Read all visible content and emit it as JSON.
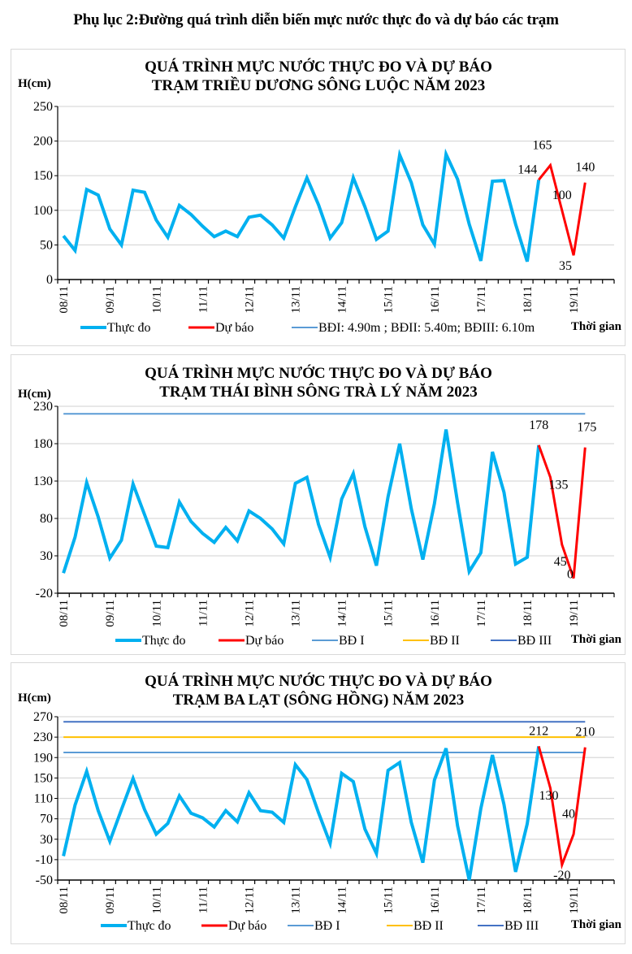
{
  "page": {
    "title": "Phụ lục 2:Đường quá trình diễn biến mực nước thực đo và dự báo các trạm"
  },
  "colors": {
    "observed": "#00b0f0",
    "forecast": "#ff0000",
    "bd1": "#5b9bd5",
    "bd2": "#ffc000",
    "bd3": "#4472c4",
    "grid": "#d9d9d9",
    "axis": "#000000"
  },
  "chart_data": [
    {
      "type": "line",
      "title": [
        "QUÁ TRÌNH MỰC NƯỚC THỰC ĐO VÀ DỰ BÁO",
        "TRẠM TRIỀU DƯƠNG SÔNG LUỘC NĂM 2023"
      ],
      "ylabel": "H(cm)",
      "xlabel": "Thời gian",
      "ylim": [
        0,
        250
      ],
      "yticks": [
        0,
        50,
        100,
        150,
        200,
        250
      ],
      "grid": true,
      "x_tick_labels": [
        "08/11",
        "09/11",
        "10/11",
        "11/11",
        "12/11",
        "13/11",
        "14/11",
        "15/11",
        "16/11",
        "17/11",
        "18/11",
        "19/11"
      ],
      "points_per_day": 4,
      "total_ticks": 48,
      "legend": [
        {
          "label": "Thực đo",
          "series": "observed"
        },
        {
          "label": "Dự báo",
          "series": "forecast"
        },
        {
          "label": "BĐI: 4.90m ; BĐII: 5.40m; BĐIII: 6.10m",
          "series": "bd1"
        }
      ],
      "legend_position": "bottom",
      "series": [
        {
          "name": "Thực đo",
          "key": "observed",
          "start_index": 0,
          "values": [
            63,
            42,
            130,
            122,
            73,
            50,
            129,
            126,
            86,
            61,
            107,
            94,
            77,
            62,
            70,
            62,
            90,
            93,
            79,
            60,
            105,
            147,
            108,
            60,
            82,
            147,
            105,
            58,
            70,
            180,
            140,
            79,
            51,
            181,
            145,
            80,
            27,
            142,
            143,
            80,
            26,
            144
          ]
        },
        {
          "name": "Dự báo",
          "key": "forecast",
          "start_index": 41,
          "values": [
            144,
            165,
            100,
            35,
            140
          ]
        }
      ],
      "alert_levels": [],
      "data_labels": [
        {
          "index": 41,
          "text": "144"
        },
        {
          "index": 42,
          "text": "165"
        },
        {
          "index": 43,
          "text": "100"
        },
        {
          "index": 44,
          "text": "35"
        },
        {
          "index": 45,
          "text": "140"
        }
      ]
    },
    {
      "type": "line",
      "title": [
        "QUÁ TRÌNH MỰC NƯỚC THỰC ĐO VÀ DỰ BÁO",
        "TRẠM THÁI BÌNH SÔNG TRÀ LÝ NĂM 2023"
      ],
      "ylabel": "H(cm)",
      "xlabel": "Thời gian",
      "ylim": [
        -20,
        230
      ],
      "yticks": [
        -20,
        30,
        80,
        130,
        180,
        230
      ],
      "grid": true,
      "x_tick_labels": [
        "08/11",
        "09/11",
        "10/11",
        "11/11",
        "12/11",
        "13/11",
        "14/11",
        "15/11",
        "16/11",
        "17/11",
        "18/11",
        "19/11"
      ],
      "points_per_day": 4,
      "total_ticks": 48,
      "legend": [
        {
          "label": "Thực đo",
          "series": "observed"
        },
        {
          "label": "Dự báo",
          "series": "forecast"
        },
        {
          "label": "BĐ I",
          "series": "bd1"
        },
        {
          "label": "BĐ II",
          "series": "bd2"
        },
        {
          "label": "BĐ III",
          "series": "bd3"
        }
      ],
      "legend_position": "bottom",
      "series": [
        {
          "name": "Thực đo",
          "key": "observed",
          "start_index": 0,
          "values": [
            7,
            55,
            128,
            82,
            27,
            51,
            126,
            85,
            43,
            41,
            102,
            76,
            60,
            48,
            68,
            50,
            90,
            80,
            66,
            46,
            127,
            135,
            72,
            28,
            106,
            140,
            69,
            17,
            109,
            180,
            93,
            25,
            100,
            199,
            101,
            9,
            34,
            169,
            115,
            19,
            28,
            178
          ]
        },
        {
          "name": "Dự báo",
          "key": "forecast",
          "start_index": 41,
          "values": [
            178,
            135,
            45,
            0,
            175
          ]
        }
      ],
      "alert_levels": [
        {
          "name": "BĐ I",
          "key": "bd1",
          "value": 220
        }
      ],
      "data_labels": [
        {
          "index": 41,
          "text": "178"
        },
        {
          "index": 42,
          "text": "135"
        },
        {
          "index": 43,
          "text": "45"
        },
        {
          "index": 44,
          "text": "0"
        },
        {
          "index": 45,
          "text": "175"
        }
      ]
    },
    {
      "type": "line",
      "title": [
        "QUÁ TRÌNH MỰC NƯỚC THỰC ĐO VÀ DỰ BÁO",
        "TRẠM BA LẠT (SÔNG HỒNG) NĂM 2023"
      ],
      "ylabel": "H(cm)",
      "xlabel": "Thời gian",
      "ylim": [
        -50,
        270
      ],
      "yticks": [
        -50,
        -10,
        30,
        70,
        110,
        150,
        190,
        230,
        270
      ],
      "grid": true,
      "x_tick_labels": [
        "08/11",
        "09/11",
        "10/11",
        "11/11",
        "12/11",
        "13/11",
        "14/11",
        "15/11",
        "16/11",
        "17/11",
        "18/11",
        "19/11"
      ],
      "points_per_day": 4,
      "total_ticks": 48,
      "legend": [
        {
          "label": "Thực đo",
          "series": "observed"
        },
        {
          "label": "Dự báo",
          "series": "forecast"
        },
        {
          "label": "BĐ I",
          "series": "bd1"
        },
        {
          "label": "BĐ II",
          "series": "bd2"
        },
        {
          "label": "BĐ III",
          "series": "bd3"
        }
      ],
      "legend_position": "bottom",
      "series": [
        {
          "name": "Thực đo",
          "key": "observed",
          "start_index": 0,
          "values": [
            -3,
            97,
            163,
            86,
            26,
            88,
            149,
            88,
            40,
            61,
            115,
            81,
            72,
            54,
            86,
            64,
            121,
            86,
            83,
            63,
            176,
            147,
            82,
            22,
            159,
            143,
            50,
            2,
            165,
            180,
            63,
            -16,
            146,
            208,
            56,
            -50,
            90,
            195,
            98,
            -34,
            60,
            212
          ]
        },
        {
          "name": "Dự báo",
          "key": "forecast",
          "start_index": 41,
          "values": [
            212,
            130,
            -20,
            40,
            210
          ]
        }
      ],
      "alert_levels": [
        {
          "name": "BĐ I",
          "key": "bd1",
          "value": 200
        },
        {
          "name": "BĐ II",
          "key": "bd2",
          "value": 230
        },
        {
          "name": "BĐ III",
          "key": "bd3",
          "value": 260
        }
      ],
      "data_labels": [
        {
          "index": 41,
          "text": "212"
        },
        {
          "index": 42,
          "text": "130"
        },
        {
          "index": 43,
          "text": "-20"
        },
        {
          "index": 44,
          "text": "40"
        },
        {
          "index": 45,
          "text": "210"
        }
      ]
    }
  ]
}
